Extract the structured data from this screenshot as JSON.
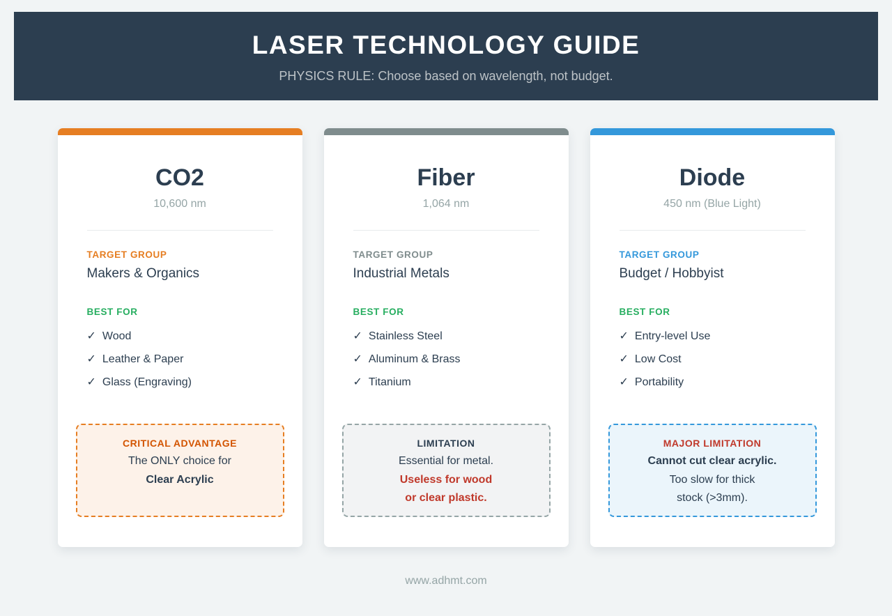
{
  "page": {
    "background": "#f1f4f5",
    "footer_url": "www.adhmt.com"
  },
  "glyphs": {
    "check": "✓"
  },
  "colors": {
    "navy": "#2c3e50",
    "green": "#27ae60",
    "red": "#c0392b",
    "gray_text": "#95a5a6"
  },
  "header": {
    "title": "LASER TECHNOLOGY GUIDE",
    "subtitle": "PHYSICS RULE: Choose based on wavelength, not budget.",
    "background": "#2c3e50",
    "title_color": "#ffffff",
    "subtitle_color": "#bdc3c7"
  },
  "cards": [
    {
      "title": "CO2",
      "wavelength": "10,600 nm",
      "accent": "#e67e22",
      "target_group": {
        "label": "TARGET GROUP",
        "label_color": "#e67e22",
        "value": "Makers & Organics"
      },
      "best_for": {
        "label": "BEST FOR",
        "label_color": "#27ae60",
        "items": [
          "Wood",
          "Leather & Paper",
          "Glass (Engraving)"
        ]
      },
      "callout": {
        "title": "CRITICAL ADVANTAGE",
        "title_color": "#d35400",
        "border_color": "#e67e22",
        "background": "#fdf2e9",
        "line_color": "#2c3e50",
        "lines": [
          "The ONLY choice for",
          "Clear Acrylic"
        ]
      }
    },
    {
      "title": "Fiber",
      "wavelength": "1,064 nm",
      "accent": "#7f8c8d",
      "target_group": {
        "label": "TARGET GROUP",
        "label_color": "#7f8c8d",
        "value": "Industrial Metals"
      },
      "best_for": {
        "label": "BEST FOR",
        "label_color": "#27ae60",
        "items": [
          "Stainless Steel",
          "Aluminum & Brass",
          "Titanium"
        ]
      },
      "callout": {
        "title": "LIMITATION",
        "title_color": "#2c3e50",
        "border_color": "#95a5a6",
        "background": "#f2f3f4",
        "warn_color": "#c0392b",
        "lines": [
          "Essential for metal.",
          "Useless for wood",
          "or clear plastic."
        ]
      }
    },
    {
      "title": "Diode",
      "wavelength": "450 nm (Blue Light)",
      "accent": "#3498db",
      "target_group": {
        "label": "TARGET GROUP",
        "label_color": "#3498db",
        "value": "Budget / Hobbyist"
      },
      "best_for": {
        "label": "BEST FOR",
        "label_color": "#27ae60",
        "items": [
          "Entry-level Use",
          "Low Cost",
          "Portability"
        ]
      },
      "callout": {
        "title": "MAJOR LIMITATION",
        "title_color": "#c0392b",
        "border_color": "#3498db",
        "background": "#ebf5fb",
        "line_color": "#2c3e50",
        "lines": [
          "Cannot cut clear acrylic.",
          "Too slow for thick",
          "stock (>3mm)."
        ]
      }
    }
  ]
}
